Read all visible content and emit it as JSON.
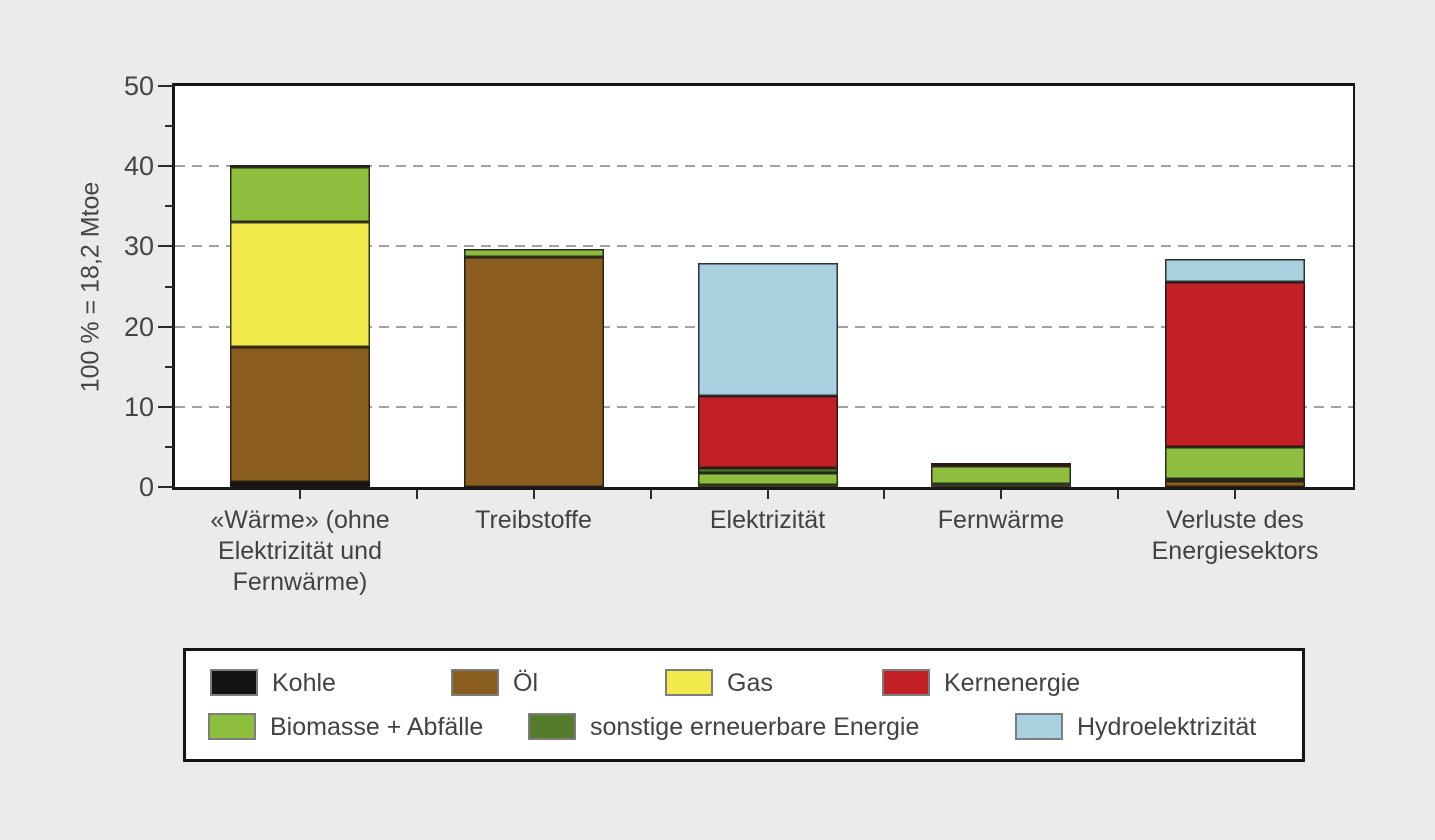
{
  "page": {
    "background_color": "#ebebeb",
    "text_color": "#424242"
  },
  "chart_data": {
    "type": "bar",
    "stacked": true,
    "title": "",
    "xlabel": "",
    "ylabel": "100 % = 18,2 Mtoe",
    "ylim": [
      0,
      50
    ],
    "yticks": [
      0,
      10,
      20,
      30,
      40,
      50
    ],
    "yticks_minor": [
      5,
      15,
      25,
      35,
      45
    ],
    "gridlines": [
      10,
      20,
      30,
      40
    ],
    "grid_style": "dashed horizontal",
    "legend_position": "bottom box",
    "categories": [
      "«Wärme» (ohne Elektrizität und Fernwärme)",
      "Treibstoffe",
      "Elektrizität",
      "Fernwärme",
      "Verluste des Energiesektors"
    ],
    "category_label_lines": [
      [
        "«Wärme» (ohne",
        "Elektrizität und",
        "Fernwärme)"
      ],
      [
        "Treibstoffe"
      ],
      [
        "Elektrizität"
      ],
      [
        "Fernwärme"
      ],
      [
        "Verluste des",
        "Energiesektors"
      ]
    ],
    "series_colors": {
      "Kohle": "#161412",
      "Öl": "#8a5c1d",
      "Gas": "#f2e94a",
      "Kernenergie": "#c22026",
      "Biomasse + Abfälle": "#8dbe3d",
      "sonstige erneuerbare Energie": "#547c2b",
      "Hydroelektrizität": "#a9d0df"
    },
    "bars": [
      {
        "category": "«Wärme» (ohne Elektrizität und Fernwärme)",
        "total": 40.2,
        "segments": [
          {
            "name": "Kohle",
            "value": 0.6
          },
          {
            "name": "Öl",
            "value": 16.9
          },
          {
            "name": "Gas",
            "value": 15.6
          },
          {
            "name": "Biomasse + Abfälle",
            "value": 6.8
          },
          {
            "name": "sonstige erneuerbare Energie",
            "value": 0.3
          }
        ]
      },
      {
        "category": "Treibstoffe",
        "total": 29.7,
        "segments": [
          {
            "name": "Öl",
            "value": 28.7
          },
          {
            "name": "Biomasse + Abfälle",
            "value": 1.0
          }
        ]
      },
      {
        "category": "Elektrizität",
        "total": 27.9,
        "segments": [
          {
            "name": "Gas",
            "value": 0.3
          },
          {
            "name": "Biomasse + Abfälle",
            "value": 1.4
          },
          {
            "name": "sonstige erneuerbare Energie",
            "value": 0.7
          },
          {
            "name": "Kernenergie",
            "value": 9.0
          },
          {
            "name": "Hydroelektrizität",
            "value": 16.5
          }
        ]
      },
      {
        "category": "Fernwärme",
        "total": 3.0,
        "segments": [
          {
            "name": "Gas",
            "value": 0.4
          },
          {
            "name": "Biomasse + Abfälle",
            "value": 2.2
          },
          {
            "name": "Kernenergie",
            "value": 0.4
          }
        ]
      },
      {
        "category": "Verluste des Energiesektors",
        "total": 28.4,
        "segments": [
          {
            "name": "Öl",
            "value": 0.7
          },
          {
            "name": "sonstige erneuerbare Energie",
            "value": 0.3
          },
          {
            "name": "Biomasse + Abfälle",
            "value": 4.0
          },
          {
            "name": "Kernenergie",
            "value": 20.6
          },
          {
            "name": "Hydroelektrizität",
            "value": 2.8
          }
        ]
      }
    ],
    "legend": {
      "rows": [
        [
          {
            "label": "Kohle",
            "color": "#161412"
          },
          {
            "label": "Öl",
            "color": "#8a5c1d"
          },
          {
            "label": "Gas",
            "color": "#f2e94a"
          },
          {
            "label": "Kernenergie",
            "color": "#c22026"
          }
        ],
        [
          {
            "label": "Biomasse + Abfälle",
            "color": "#8dbe3d"
          },
          {
            "label": "sonstige erneuerbare Energie",
            "color": "#547c2b"
          },
          {
            "label": "Hydroelektrizität",
            "color": "#a9d0df"
          }
        ]
      ]
    }
  }
}
